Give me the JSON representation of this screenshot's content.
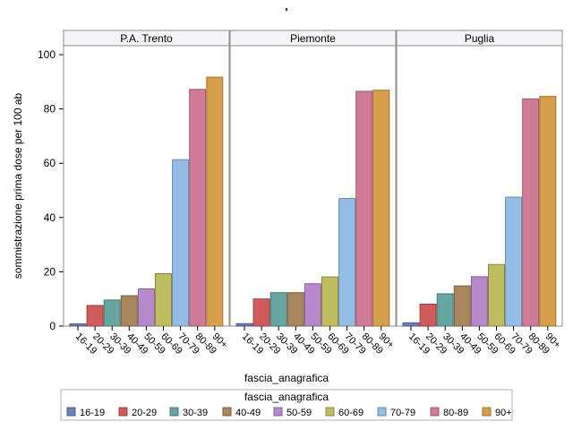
{
  "page": {
    "title": "'"
  },
  "chart_data": {
    "type": "bar",
    "title": "'",
    "xlabel": "fascia_anagrafica",
    "ylabel": "sommistrazione prima dose per 100 ab",
    "ylim": [
      0,
      100
    ],
    "yticks": [
      0,
      20,
      40,
      60,
      80,
      100
    ],
    "grid": false,
    "legend_placement": "bottom",
    "legend_title": "fascia_anagrafica",
    "categories": [
      "16-19",
      "20-29",
      "30-39",
      "40-49",
      "50-59",
      "60-69",
      "70-79",
      "80-89",
      "90+"
    ],
    "colors": [
      "#6f7eb7",
      "#d05b5b",
      "#66a5a0",
      "#a9865b",
      "#b689ca",
      "#bdbd5f",
      "#94bde6",
      "#cf7b98",
      "#d7a04a"
    ],
    "panels": [
      {
        "name": "P.A. Trento",
        "values": [
          0.8,
          7.6,
          9.6,
          11.2,
          13.7,
          19.3,
          61.3,
          87.2,
          91.7
        ]
      },
      {
        "name": "Piemonte",
        "values": [
          0.9,
          10.0,
          12.3,
          12.3,
          15.6,
          18.1,
          47.0,
          86.5,
          86.9
        ]
      },
      {
        "name": "Puglia",
        "values": [
          1.2,
          8.1,
          11.9,
          14.8,
          18.2,
          22.7,
          47.5,
          83.7,
          84.6
        ]
      }
    ]
  }
}
